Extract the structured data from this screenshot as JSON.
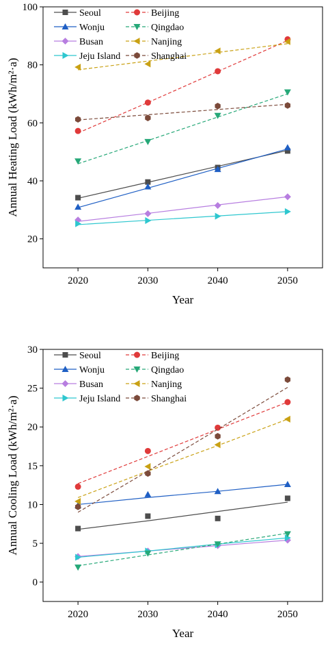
{
  "chart_data": [
    {
      "type": "scatter",
      "xlabel": "Year",
      "ylabel": "Annual Heating Load (kWh/m²·a)",
      "x": [
        2020,
        2030,
        2040,
        2050
      ],
      "xlim": [
        2015,
        2055
      ],
      "ylim": [
        10,
        100
      ],
      "xticks": [
        "2020",
        "2030",
        "2040",
        "2050"
      ],
      "yticks": [
        "20",
        "40",
        "60",
        "80",
        "100"
      ],
      "grid": false,
      "legend": "top-left, two columns",
      "series": [
        {
          "name": "Seoul",
          "color": "#4d4d4d",
          "marker": "square",
          "line": "solid",
          "values": [
            34.2,
            39.6,
            44.6,
            50.3
          ],
          "fit": [
            34.0,
            39.5,
            45.0,
            50.5
          ]
        },
        {
          "name": "Wonju",
          "color": "#1f5fc4",
          "marker": "triangle-up",
          "line": "solid",
          "values": [
            31.0,
            38.0,
            44.0,
            51.5
          ],
          "fit": [
            30.8,
            37.5,
            44.3,
            51.0
          ]
        },
        {
          "name": "Busan",
          "color": "#b77ee0",
          "marker": "diamond",
          "line": "solid",
          "values": [
            26.5,
            28.7,
            31.5,
            34.5
          ],
          "fit": [
            26.0,
            28.8,
            31.7,
            34.5
          ]
        },
        {
          "name": "Jeju Island",
          "color": "#2ec7cf",
          "marker": "triangle-right",
          "line": "solid",
          "values": [
            25.2,
            26.3,
            27.8,
            29.4
          ],
          "fit": [
            24.9,
            26.4,
            27.9,
            29.4
          ]
        },
        {
          "name": "Beijing",
          "color": "#e03a3a",
          "marker": "circle",
          "line": "dashed",
          "values": [
            57.2,
            67.0,
            77.8,
            88.8
          ],
          "fit": [
            56.5,
            67.0,
            77.7,
            88.4
          ]
        },
        {
          "name": "Qingdao",
          "color": "#26a878",
          "marker": "triangle-down",
          "line": "dashed",
          "values": [
            46.8,
            53.5,
            62.5,
            70.6
          ],
          "fit": [
            45.9,
            53.9,
            62.0,
            70.0
          ]
        },
        {
          "name": "Nanjing",
          "color": "#c9a114",
          "marker": "triangle-left",
          "line": "dashed",
          "values": [
            79.2,
            80.3,
            84.8,
            88.0
          ],
          "fit": [
            78.3,
            81.3,
            84.3,
            87.3
          ]
        },
        {
          "name": "Shanghai",
          "color": "#7b4a3a",
          "marker": "hexagon",
          "line": "dashed",
          "values": [
            61.2,
            61.7,
            65.8,
            66.0
          ],
          "fit": [
            61.0,
            62.8,
            64.6,
            66.4
          ]
        }
      ]
    },
    {
      "type": "scatter",
      "xlabel": "Year",
      "ylabel": "Annual Cooling Load (kWh/m²·a)",
      "x": [
        2020,
        2030,
        2040,
        2050
      ],
      "xlim": [
        2015,
        2055
      ],
      "ylim": [
        -2.5,
        30
      ],
      "xticks": [
        "2020",
        "2030",
        "2040",
        "2050"
      ],
      "yticks": [
        "0",
        "5",
        "10",
        "15",
        "20",
        "25",
        "30"
      ],
      "grid": false,
      "legend": "top-left, two columns",
      "series": [
        {
          "name": "Seoul",
          "color": "#4d4d4d",
          "marker": "square",
          "line": "solid",
          "values": [
            6.9,
            8.5,
            8.2,
            10.8
          ],
          "fit": [
            6.8,
            7.9,
            9.1,
            10.3
          ]
        },
        {
          "name": "Wonju",
          "color": "#1f5fc4",
          "marker": "triangle-up",
          "line": "solid",
          "values": [
            9.9,
            11.3,
            11.7,
            12.6
          ],
          "fit": [
            10.0,
            10.9,
            11.7,
            12.6
          ]
        },
        {
          "name": "Busan",
          "color": "#b77ee0",
          "marker": "diamond",
          "line": "solid",
          "values": [
            3.3,
            4.0,
            4.7,
            5.4
          ],
          "fit": [
            3.3,
            4.0,
            4.7,
            5.4
          ]
        },
        {
          "name": "Jeju Island",
          "color": "#2ec7cf",
          "marker": "triangle-right",
          "line": "solid",
          "values": [
            3.2,
            4.0,
            4.8,
            5.7
          ],
          "fit": [
            3.2,
            4.0,
            4.9,
            5.7
          ]
        },
        {
          "name": "Beijing",
          "color": "#e03a3a",
          "marker": "circle",
          "line": "dashed",
          "values": [
            12.3,
            16.9,
            19.9,
            23.2
          ],
          "fit": [
            12.7,
            16.2,
            19.7,
            23.2
          ]
        },
        {
          "name": "Qingdao",
          "color": "#26a878",
          "marker": "triangle-down",
          "line": "dashed",
          "values": [
            1.9,
            3.7,
            4.9,
            6.2
          ],
          "fit": [
            2.1,
            3.5,
            4.9,
            6.3
          ]
        },
        {
          "name": "Nanjing",
          "color": "#c9a114",
          "marker": "triangle-left",
          "line": "dashed",
          "values": [
            10.4,
            14.9,
            17.7,
            21.0
          ],
          "fit": [
            10.9,
            14.3,
            17.6,
            21.0
          ]
        },
        {
          "name": "Shanghai",
          "color": "#7b4a3a",
          "marker": "hexagon",
          "line": "dashed",
          "values": [
            9.7,
            14.0,
            18.8,
            26.1
          ],
          "fit": [
            9.0,
            14.3,
            19.7,
            25.1
          ]
        }
      ]
    }
  ]
}
